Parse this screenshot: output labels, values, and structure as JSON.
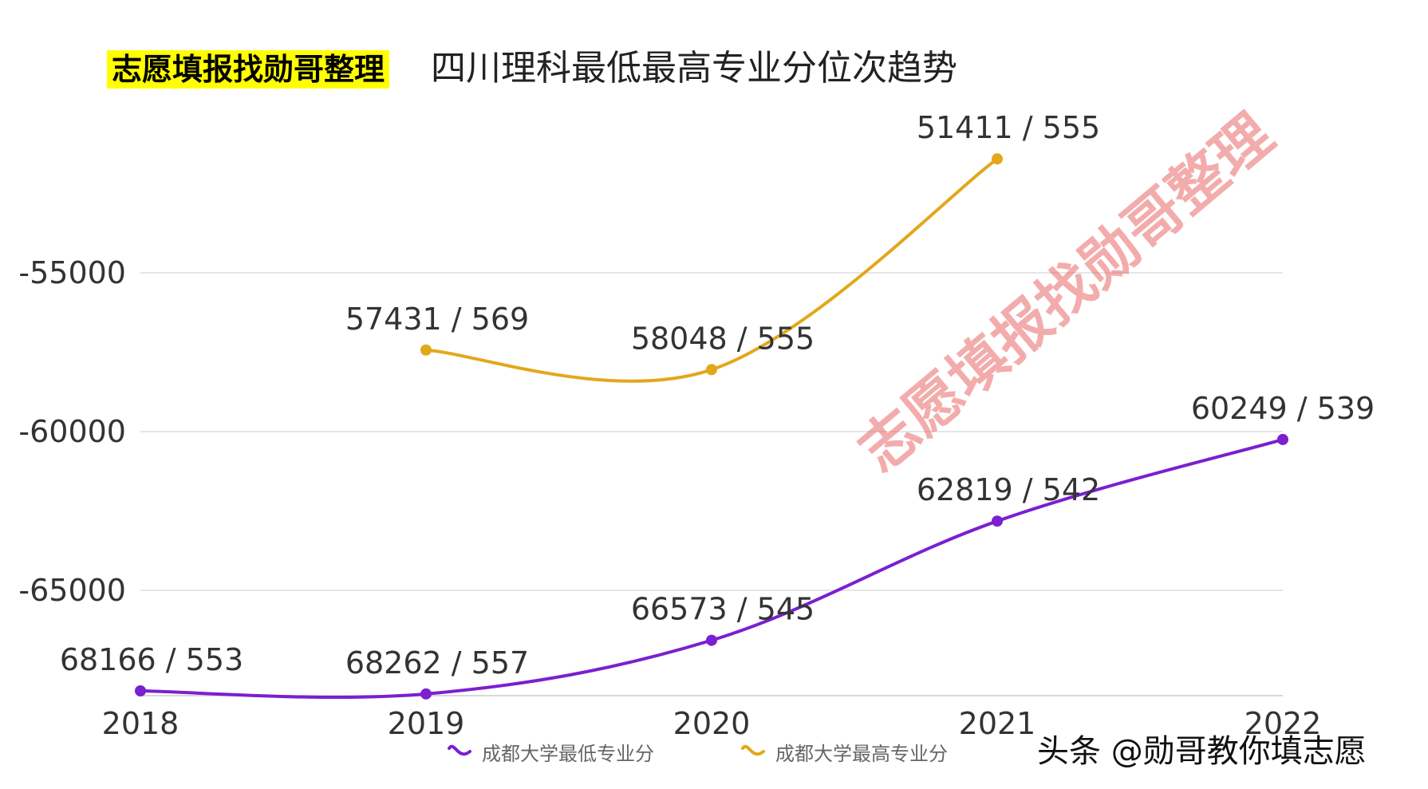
{
  "highlight_label": "志愿填报找勋哥整理",
  "watermark": "志愿填报找勋哥整理",
  "brand_caption": "头条 @勋哥教你填志愿",
  "chart_data": {
    "type": "line",
    "title": "四川理科最低最高专业分位次趋势",
    "categories": [
      "2018",
      "2019",
      "2020",
      "2021",
      "2022"
    ],
    "y_ticks": [
      -55000,
      -60000,
      -65000
    ],
    "ylim": [
      -68500,
      -51000
    ],
    "grid": true,
    "legend_position": "bottom",
    "series": [
      {
        "name": "成都大学最低专业分",
        "color": "#7b1fd0",
        "values": [
          -68166,
          -68262,
          -66573,
          -62819,
          -60249
        ],
        "labels": [
          "68166 / 553",
          "68262 / 557",
          "66573 / 545",
          "62819 / 542",
          "60249 / 539"
        ]
      },
      {
        "name": "成都大学最高专业分",
        "color": "#e3a71b",
        "values": [
          null,
          -57431,
          -58048,
          -51411,
          null
        ],
        "labels": [
          "",
          "57431 / 569",
          "58048 / 555",
          "51411 / 555",
          ""
        ]
      }
    ]
  }
}
